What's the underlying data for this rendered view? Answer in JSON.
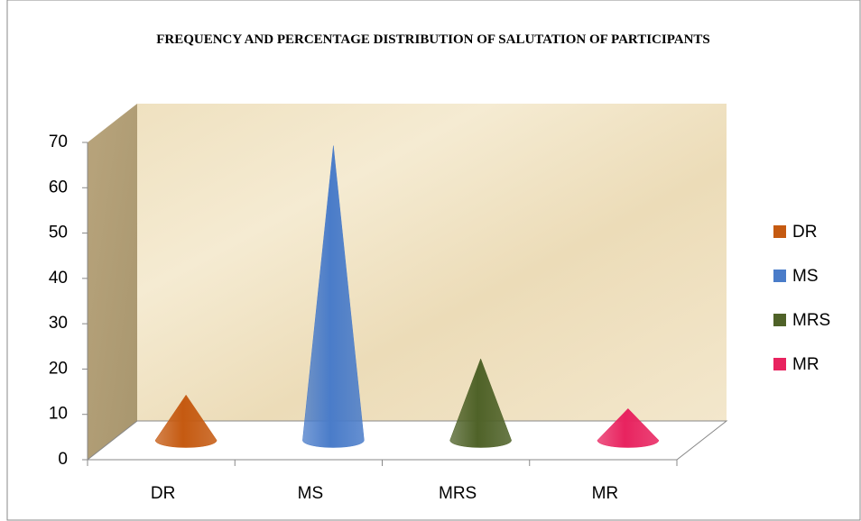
{
  "chart_data": {
    "type": "cone3d",
    "title": "FREQUENCY AND PERCENTAGE DISTRIBUTION OF SALUTATION OF PARTICIPANTS",
    "categories": [
      "DR",
      "MS",
      "MRS",
      "MR"
    ],
    "values": [
      10,
      65,
      18,
      7
    ],
    "colors": [
      "#c55a11",
      "#4a7cc9",
      "#4f6228",
      "#e8235f"
    ],
    "ylim": [
      0,
      70
    ],
    "yticks": [
      0,
      10,
      20,
      30,
      40,
      50,
      60,
      70
    ],
    "legend": "right",
    "grid": false
  }
}
